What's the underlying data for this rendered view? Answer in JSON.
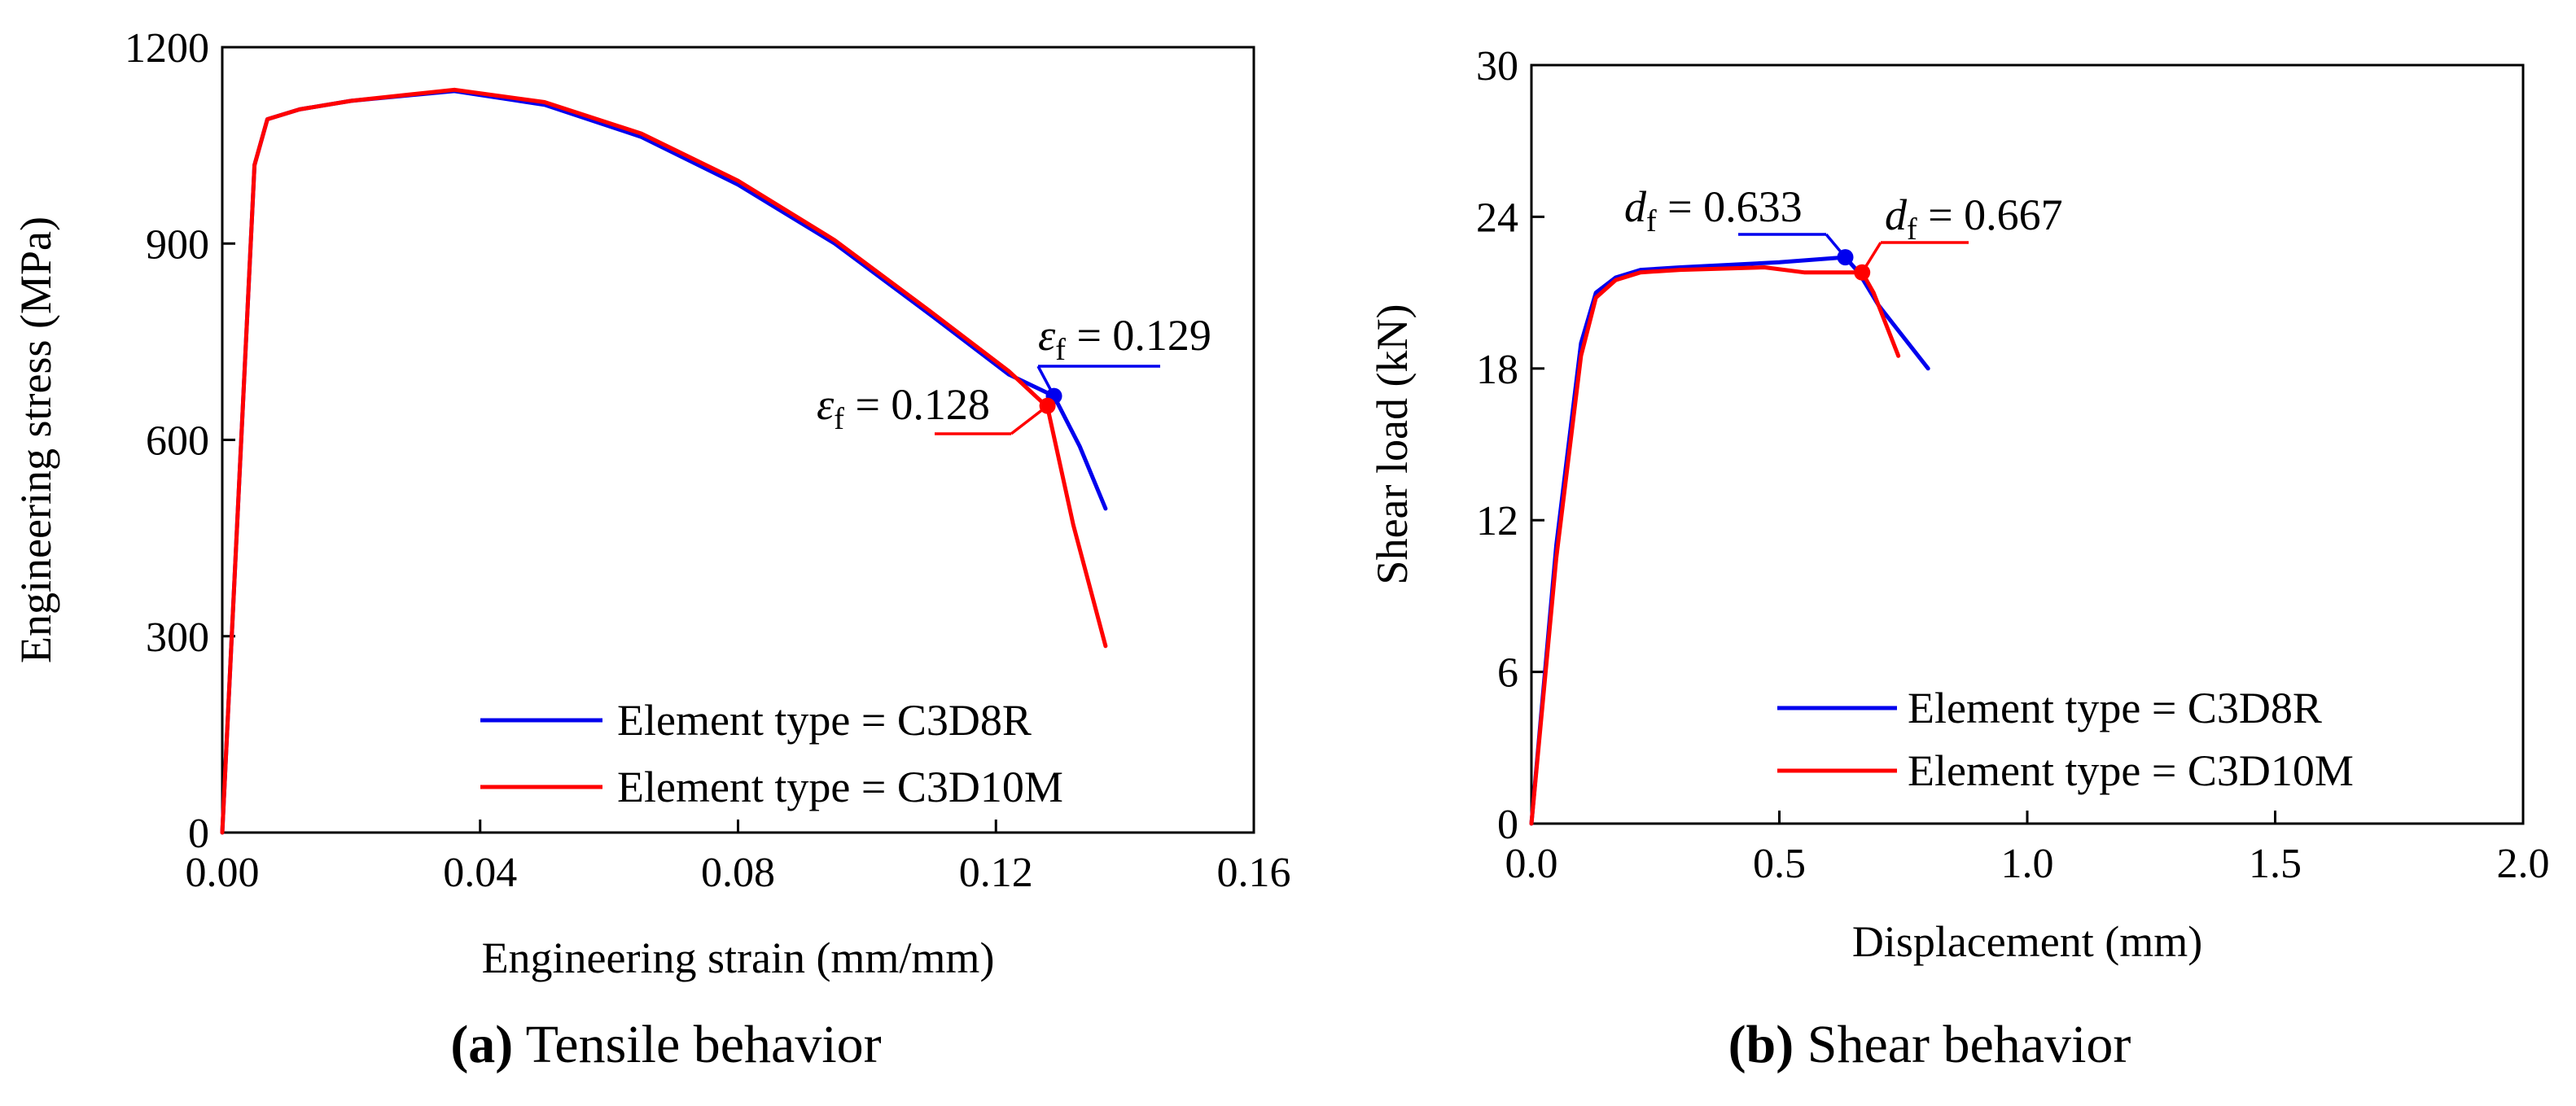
{
  "chart_data": [
    {
      "type": "line",
      "caption_letter": "(a)",
      "caption_text": " Tensile behavior",
      "xlabel": "Engineering strain (mm/mm)",
      "ylabel": "Engineering stress (MPa)",
      "xlim": [
        0,
        0.16
      ],
      "ylim": [
        0,
        1200
      ],
      "xticks": [
        "0.00",
        "0.04",
        "0.08",
        "0.12",
        "0.16"
      ],
      "xtick_values": [
        0,
        0.04,
        0.08,
        0.12,
        0.16
      ],
      "yticks": [
        "0",
        "300",
        "600",
        "900",
        "1200"
      ],
      "ytick_values": [
        0,
        300,
        600,
        900,
        1200
      ],
      "legend_position": "bottom-right",
      "series": [
        {
          "name": "Element type = C3D8R",
          "color": "#0000ee",
          "x": [
            0,
            0.005,
            0.007,
            0.012,
            0.02,
            0.036,
            0.05,
            0.065,
            0.08,
            0.095,
            0.11,
            0.122,
            0.129,
            0.133,
            0.137
          ],
          "y": [
            0,
            1020,
            1090,
            1105,
            1118,
            1133,
            1112,
            1063,
            990,
            900,
            790,
            700,
            667,
            590,
            495
          ]
        },
        {
          "name": "Element type = C3D10M",
          "color": "#ff0000",
          "x": [
            0,
            0.005,
            0.007,
            0.012,
            0.02,
            0.036,
            0.05,
            0.065,
            0.08,
            0.095,
            0.11,
            0.122,
            0.128,
            0.132,
            0.137
          ],
          "y": [
            0,
            1020,
            1090,
            1105,
            1118,
            1135,
            1116,
            1068,
            996,
            905,
            795,
            705,
            650,
            470,
            285
          ]
        }
      ],
      "failure_points": [
        {
          "label": "0.129",
          "x": 0.129,
          "y": 667,
          "color": "#0000ee"
        },
        {
          "label": "0.128",
          "x": 0.128,
          "y": 652,
          "color": "#ff0000"
        }
      ],
      "failure_symbol": "ε",
      "failure_subscript": "f"
    },
    {
      "type": "line",
      "caption_letter": "(b)",
      "caption_text": " Shear behavior",
      "xlabel": "Displacement (mm)",
      "ylabel": "Shear load (kN)",
      "xlim": [
        0,
        2.0
      ],
      "ylim": [
        0,
        30
      ],
      "xticks": [
        "0.0",
        "0.5",
        "1.0",
        "1.5",
        "2.0"
      ],
      "xtick_values": [
        0,
        0.5,
        1.0,
        1.5,
        2.0
      ],
      "yticks": [
        "0",
        "6",
        "12",
        "18",
        "24",
        "30"
      ],
      "ytick_values": [
        0,
        6,
        12,
        18,
        24,
        30
      ],
      "legend_position": "bottom-right",
      "series": [
        {
          "name": "Element type = C3D8R",
          "color": "#0000ee",
          "x": [
            0,
            0.05,
            0.1,
            0.13,
            0.17,
            0.22,
            0.3,
            0.5,
            0.633,
            0.66,
            0.7,
            0.8
          ],
          "y": [
            0,
            11,
            19,
            21,
            21.6,
            21.9,
            22.0,
            22.2,
            22.4,
            21.8,
            20.5,
            18.0
          ]
        },
        {
          "name": "Element type = C3D10M",
          "color": "#ff0000",
          "x": [
            0,
            0.05,
            0.1,
            0.13,
            0.17,
            0.22,
            0.3,
            0.47,
            0.55,
            0.667,
            0.69,
            0.72,
            0.74
          ],
          "y": [
            0,
            10.5,
            18.5,
            20.8,
            21.5,
            21.8,
            21.9,
            22.0,
            21.8,
            21.8,
            21.0,
            19.5,
            18.5
          ]
        }
      ],
      "failure_points": [
        {
          "label": "0.633",
          "x": 0.633,
          "y": 22.4,
          "color": "#0000ee"
        },
        {
          "label": "0.667",
          "x": 0.667,
          "y": 21.8,
          "color": "#ff0000"
        }
      ],
      "failure_symbol": "d",
      "failure_subscript": "f"
    }
  ]
}
